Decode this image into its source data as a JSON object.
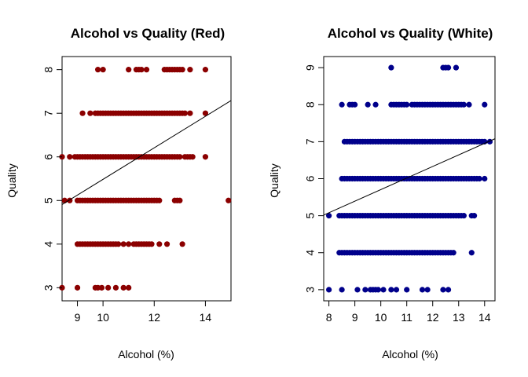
{
  "chart_data": [
    {
      "type": "scatter",
      "title": "Alcohol vs Quality (Red)",
      "xlabel": "Alcohol (%)",
      "ylabel": "Quality",
      "xlim": [
        8.4,
        15.0
      ],
      "ylim": [
        2.7,
        8.3
      ],
      "xticks": [
        9,
        10,
        12,
        14
      ],
      "xtick_labels": [
        "9",
        "10",
        "12",
        "14"
      ],
      "yticks": [
        3,
        4,
        5,
        6,
        7,
        8
      ],
      "ytick_labels": [
        "3",
        "4",
        "5",
        "6",
        "7",
        "8"
      ],
      "point_color": "#8b0000",
      "line_color": "#000000",
      "grid": false,
      "trend_line": {
        "intercept": 1.875,
        "slope": 0.361
      },
      "series": [
        {
          "quality": 3,
          "x": [
            8.4,
            9.0,
            9.7,
            9.8,
            9.95,
            10.2,
            10.5,
            10.8,
            11.0
          ]
        },
        {
          "quality": 4,
          "x": [
            9.0,
            9.1,
            9.2,
            9.3,
            9.4,
            9.5,
            9.6,
            9.7,
            9.8,
            9.9,
            10.0,
            10.1,
            10.2,
            10.3,
            10.4,
            10.5,
            10.6,
            10.8,
            11.0,
            11.2,
            11.3,
            11.4,
            11.5,
            11.6,
            11.7,
            11.8,
            11.9,
            12.2,
            12.5,
            13.1
          ]
        },
        {
          "quality": 5,
          "x": [
            8.5,
            8.7,
            9.0,
            9.1,
            9.2,
            9.3,
            9.4,
            9.5,
            9.6,
            9.7,
            9.8,
            9.9,
            10.0,
            10.1,
            10.2,
            10.3,
            10.4,
            10.5,
            10.6,
            10.7,
            10.8,
            10.9,
            11.0,
            11.1,
            11.2,
            11.3,
            11.4,
            11.5,
            11.6,
            11.7,
            11.8,
            11.9,
            12.0,
            12.1,
            12.2,
            12.8,
            12.9,
            13.0,
            14.9
          ]
        },
        {
          "quality": 6,
          "x": [
            8.4,
            8.7,
            8.9,
            9.0,
            9.1,
            9.2,
            9.3,
            9.4,
            9.5,
            9.6,
            9.7,
            9.8,
            9.9,
            10.0,
            10.1,
            10.2,
            10.3,
            10.4,
            10.5,
            10.6,
            10.7,
            10.8,
            10.9,
            11.0,
            11.1,
            11.2,
            11.3,
            11.4,
            11.5,
            11.6,
            11.7,
            11.8,
            11.9,
            12.0,
            12.1,
            12.2,
            12.3,
            12.4,
            12.5,
            12.6,
            12.7,
            12.8,
            12.9,
            13.0,
            13.2,
            13.3,
            13.4,
            13.5,
            14.0
          ]
        },
        {
          "quality": 7,
          "x": [
            9.2,
            9.5,
            9.7,
            9.8,
            9.9,
            10.0,
            10.1,
            10.2,
            10.3,
            10.4,
            10.5,
            10.6,
            10.7,
            10.8,
            10.9,
            11.0,
            11.1,
            11.2,
            11.3,
            11.4,
            11.5,
            11.6,
            11.7,
            11.8,
            11.9,
            12.0,
            12.1,
            12.2,
            12.3,
            12.4,
            12.5,
            12.6,
            12.7,
            12.8,
            12.9,
            13.0,
            13.1,
            13.2,
            13.4,
            14.0
          ]
        },
        {
          "quality": 8,
          "x": [
            9.8,
            10.0,
            11.0,
            11.3,
            11.4,
            11.5,
            11.7,
            12.4,
            12.5,
            12.6,
            12.7,
            12.8,
            12.9,
            13.0,
            13.1,
            13.4,
            14.0
          ]
        }
      ]
    },
    {
      "type": "scatter",
      "title": "Alcohol vs Quality (White)",
      "xlabel": "Alcohol (%)",
      "ylabel": "Quality",
      "xlim": [
        7.8,
        14.4
      ],
      "ylim": [
        2.7,
        9.3
      ],
      "xticks": [
        8,
        9,
        10,
        11,
        12,
        13,
        14
      ],
      "xtick_labels": [
        "8",
        "9",
        "10",
        "11",
        "12",
        "13",
        "14"
      ],
      "yticks": [
        3,
        4,
        5,
        6,
        7,
        8,
        9
      ],
      "ytick_labels": [
        "3",
        "4",
        "5",
        "6",
        "7",
        "8",
        "9"
      ],
      "point_color": "#00008b",
      "line_color": "#000000",
      "grid": false,
      "trend_line": {
        "intercept": 2.58,
        "slope": 0.3125
      },
      "series": [
        {
          "quality": 3,
          "x": [
            8.0,
            8.5,
            9.1,
            9.4,
            9.6,
            9.7,
            9.8,
            9.9,
            10.1,
            10.4,
            10.6,
            11.0,
            11.6,
            11.8,
            12.4,
            12.6
          ]
        },
        {
          "quality": 4,
          "x": [
            8.4,
            8.5,
            8.6,
            8.7,
            8.8,
            8.9,
            9.0,
            9.1,
            9.2,
            9.3,
            9.4,
            9.5,
            9.6,
            9.7,
            9.8,
            9.9,
            10.0,
            10.1,
            10.2,
            10.3,
            10.4,
            10.5,
            10.6,
            10.7,
            10.8,
            10.9,
            11.0,
            11.1,
            11.2,
            11.3,
            11.4,
            11.5,
            11.6,
            11.7,
            11.8,
            11.9,
            12.0,
            12.1,
            12.2,
            12.3,
            12.4,
            12.5,
            12.6,
            12.7,
            12.8,
            13.5
          ]
        },
        {
          "quality": 5,
          "x": [
            8.0,
            8.4,
            8.5,
            8.6,
            8.7,
            8.8,
            8.9,
            9.0,
            9.1,
            9.2,
            9.3,
            9.4,
            9.5,
            9.6,
            9.7,
            9.8,
            9.9,
            10.0,
            10.1,
            10.2,
            10.3,
            10.4,
            10.5,
            10.6,
            10.7,
            10.8,
            10.9,
            11.0,
            11.1,
            11.2,
            11.3,
            11.4,
            11.5,
            11.6,
            11.7,
            11.8,
            11.9,
            12.0,
            12.1,
            12.2,
            12.3,
            12.4,
            12.5,
            12.6,
            12.7,
            12.8,
            12.9,
            13.0,
            13.1,
            13.2,
            13.5,
            13.6
          ]
        },
        {
          "quality": 6,
          "x": [
            8.5,
            8.6,
            8.7,
            8.8,
            8.9,
            9.0,
            9.1,
            9.2,
            9.3,
            9.4,
            9.5,
            9.6,
            9.7,
            9.8,
            9.9,
            10.0,
            10.1,
            10.2,
            10.3,
            10.4,
            10.5,
            10.6,
            10.7,
            10.8,
            10.9,
            11.0,
            11.1,
            11.2,
            11.3,
            11.4,
            11.5,
            11.6,
            11.7,
            11.8,
            11.9,
            12.0,
            12.1,
            12.2,
            12.3,
            12.4,
            12.5,
            12.6,
            12.7,
            12.8,
            12.9,
            13.0,
            13.1,
            13.2,
            13.3,
            13.4,
            13.5,
            13.6,
            13.7,
            13.8,
            14.0
          ]
        },
        {
          "quality": 7,
          "x": [
            8.6,
            8.7,
            8.8,
            8.9,
            9.0,
            9.1,
            9.2,
            9.3,
            9.4,
            9.5,
            9.6,
            9.7,
            9.8,
            9.9,
            10.0,
            10.1,
            10.2,
            10.3,
            10.4,
            10.5,
            10.6,
            10.7,
            10.8,
            10.9,
            11.0,
            11.1,
            11.2,
            11.3,
            11.4,
            11.5,
            11.6,
            11.7,
            11.8,
            11.9,
            12.0,
            12.1,
            12.2,
            12.3,
            12.4,
            12.5,
            12.6,
            12.7,
            12.8,
            12.9,
            13.0,
            13.1,
            13.2,
            13.3,
            13.4,
            13.5,
            13.6,
            13.7,
            13.8,
            13.9,
            14.0,
            14.2
          ]
        },
        {
          "quality": 8,
          "x": [
            8.5,
            8.8,
            8.9,
            9.0,
            9.5,
            9.8,
            10.4,
            10.5,
            10.6,
            10.7,
            10.8,
            10.9,
            11.0,
            11.2,
            11.3,
            11.4,
            11.5,
            11.6,
            11.7,
            11.8,
            11.9,
            12.0,
            12.1,
            12.2,
            12.3,
            12.4,
            12.5,
            12.6,
            12.7,
            12.8,
            12.9,
            13.0,
            13.1,
            13.2,
            13.4,
            14.0
          ]
        },
        {
          "quality": 9,
          "x": [
            10.4,
            12.4,
            12.5,
            12.6,
            12.9
          ]
        }
      ]
    }
  ]
}
